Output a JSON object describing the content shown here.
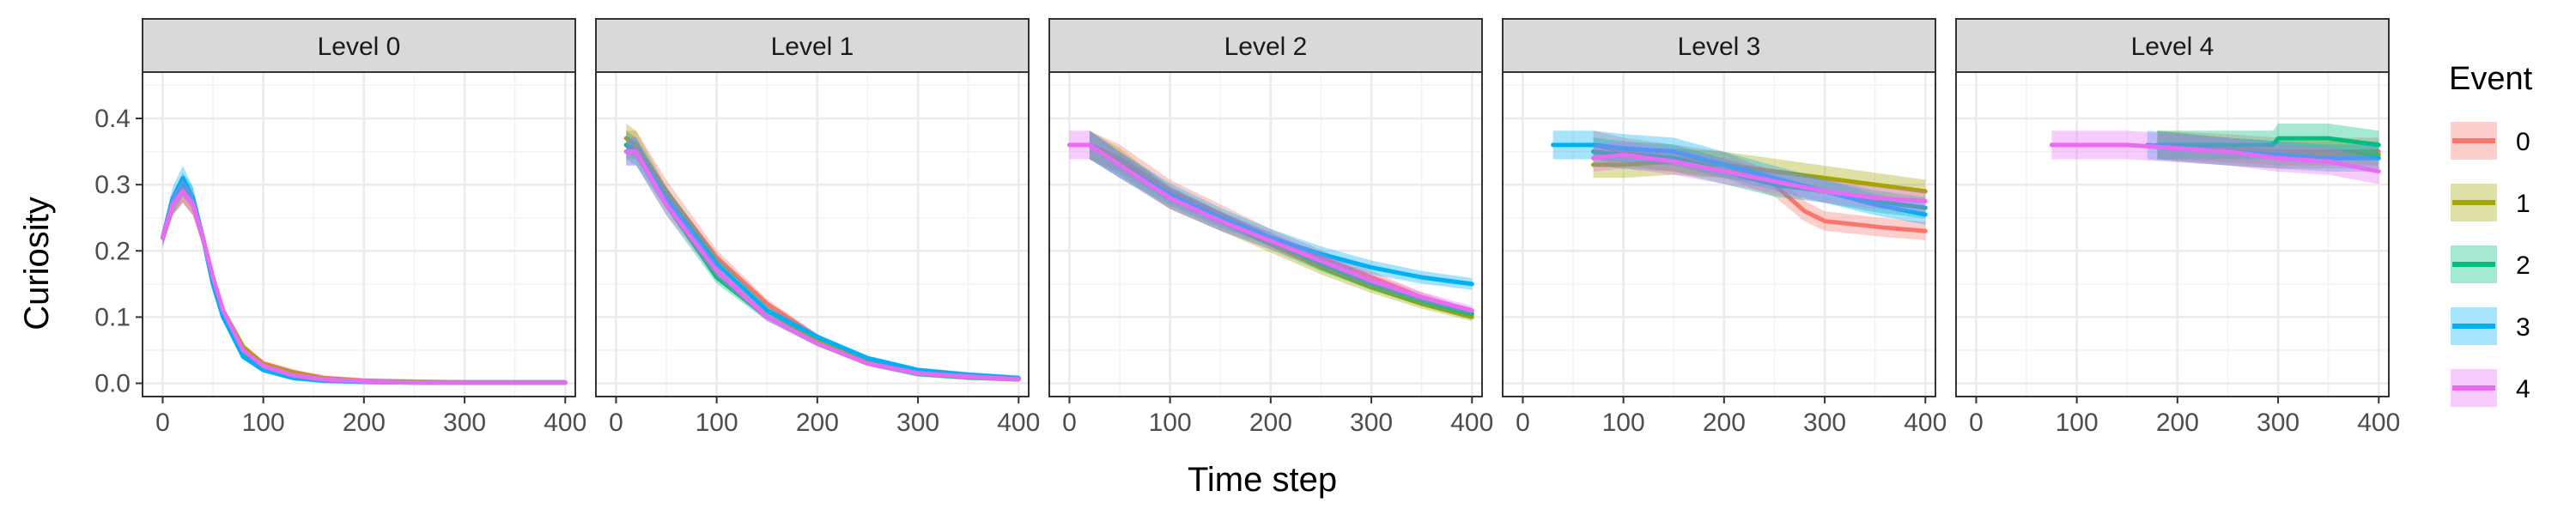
{
  "chart_data": {
    "type": "line",
    "title": "",
    "xlabel": "Time step",
    "ylabel": "Curiosity",
    "xlim": [
      -20,
      410
    ],
    "ylim": [
      -0.02,
      0.47
    ],
    "x_ticks": [
      0,
      100,
      200,
      300,
      400
    ],
    "y_ticks": [
      0.0,
      0.1,
      0.2,
      0.3,
      0.4
    ],
    "y_tick_labels": [
      "0.0",
      "0.1",
      "0.2",
      "0.3",
      "0.4"
    ],
    "grid": true,
    "legend": {
      "title": "Event",
      "placement": "right",
      "entries": [
        "0",
        "1",
        "2",
        "3",
        "4"
      ]
    },
    "colors": {
      "0": "#F8766D",
      "1": "#A3A500",
      "2": "#00BF7D",
      "3": "#00B0F6",
      "4": "#E76BF3"
    },
    "panels": [
      {
        "label": "Level 0",
        "series": [
          {
            "name": "0",
            "x": [
              0,
              10,
              20,
              30,
              40,
              50,
              60,
              80,
              100,
              130,
              160,
              200,
              250,
              300,
              400
            ],
            "y": [
              0.22,
              0.27,
              0.29,
              0.27,
              0.22,
              0.16,
              0.11,
              0.055,
              0.03,
              0.017,
              0.008,
              0.004,
              0.002,
              0.001,
              0.001
            ]
          },
          {
            "name": "1",
            "x": [
              0,
              10,
              20,
              30,
              40,
              50,
              60,
              80,
              100,
              130,
              160,
              200,
              250,
              300,
              400
            ],
            "y": [
              0.22,
              0.27,
              0.29,
              0.27,
              0.22,
              0.16,
              0.11,
              0.055,
              0.028,
              0.015,
              0.007,
              0.003,
              0.002,
              0.001,
              0.001
            ]
          },
          {
            "name": "2",
            "x": [
              0,
              10,
              20,
              30,
              40,
              50,
              60,
              80,
              100,
              130,
              160,
              200,
              250,
              300,
              400
            ],
            "y": [
              0.22,
              0.27,
              0.3,
              0.28,
              0.22,
              0.15,
              0.1,
              0.045,
              0.022,
              0.01,
              0.005,
              0.002,
              0.001,
              0.001,
              0.001
            ]
          },
          {
            "name": "3",
            "x": [
              0,
              10,
              20,
              30,
              40,
              50,
              60,
              80,
              100,
              130,
              160,
              200,
              250,
              300,
              400
            ],
            "y": [
              0.22,
              0.28,
              0.31,
              0.28,
              0.22,
              0.15,
              0.1,
              0.04,
              0.02,
              0.008,
              0.004,
              0.002,
              0.001,
              0.001,
              0.001
            ]
          },
          {
            "name": "4",
            "x": [
              0,
              10,
              20,
              30,
              40,
              50,
              60,
              80,
              100,
              130,
              160,
              200,
              250,
              300,
              400
            ],
            "y": [
              0.22,
              0.27,
              0.29,
              0.27,
              0.22,
              0.16,
              0.11,
              0.05,
              0.026,
              0.012,
              0.006,
              0.003,
              0.001,
              0.001,
              0.001
            ]
          }
        ]
      },
      {
        "label": "Level 1",
        "series": [
          {
            "name": "0",
            "x": [
              10,
              20,
              50,
              100,
              150,
              200,
              250,
              300,
              350,
              400
            ],
            "y": [
              0.36,
              0.36,
              0.29,
              0.19,
              0.12,
              0.07,
              0.035,
              0.017,
              0.01,
              0.007
            ]
          },
          {
            "name": "1",
            "x": [
              10,
              20,
              50,
              100,
              150,
              200,
              250,
              300,
              350,
              400
            ],
            "y": [
              0.37,
              0.36,
              0.28,
              0.18,
              0.11,
              0.065,
              0.032,
              0.015,
              0.009,
              0.006
            ]
          },
          {
            "name": "2",
            "x": [
              10,
              20,
              50,
              100,
              150,
              200,
              250,
              300,
              350,
              400
            ],
            "y": [
              0.36,
              0.35,
              0.27,
              0.16,
              0.1,
              0.06,
              0.03,
              0.014,
              0.009,
              0.007
            ]
          },
          {
            "name": "3",
            "x": [
              10,
              20,
              50,
              100,
              150,
              200,
              250,
              300,
              350,
              400
            ],
            "y": [
              0.35,
              0.35,
              0.28,
              0.18,
              0.11,
              0.07,
              0.038,
              0.02,
              0.013,
              0.008
            ]
          },
          {
            "name": "4",
            "x": [
              10,
              20,
              50,
              100,
              150,
              200,
              250,
              300,
              350,
              400
            ],
            "y": [
              0.35,
              0.35,
              0.27,
              0.17,
              0.1,
              0.06,
              0.03,
              0.015,
              0.01,
              0.006
            ]
          }
        ]
      },
      {
        "label": "Level 2",
        "series": [
          {
            "name": "0",
            "x": [
              20,
              50,
              100,
              150,
              200,
              250,
              300,
              350,
              400
            ],
            "y": [
              0.36,
              0.34,
              0.29,
              0.255,
              0.22,
              0.19,
              0.16,
              0.13,
              0.105
            ]
          },
          {
            "name": "1",
            "x": [
              20,
              50,
              100,
              150,
              200,
              250,
              300,
              350,
              400
            ],
            "y": [
              0.36,
              0.335,
              0.28,
              0.245,
              0.21,
              0.175,
              0.145,
              0.12,
              0.1
            ]
          },
          {
            "name": "2",
            "x": [
              20,
              50,
              100,
              150,
              200,
              250,
              300,
              350,
              400
            ],
            "y": [
              0.36,
              0.33,
              0.28,
              0.245,
              0.215,
              0.18,
              0.15,
              0.125,
              0.105
            ]
          },
          {
            "name": "3",
            "x": [
              20,
              50,
              100,
              150,
              200,
              250,
              300,
              350,
              400
            ],
            "y": [
              0.36,
              0.33,
              0.285,
              0.25,
              0.22,
              0.195,
              0.175,
              0.16,
              0.15
            ]
          },
          {
            "name": "4",
            "x": [
              0,
              20,
              50,
              100,
              150,
              200,
              250,
              300,
              350,
              400
            ],
            "y": [
              0.36,
              0.36,
              0.33,
              0.28,
              0.245,
              0.215,
              0.185,
              0.155,
              0.13,
              0.11
            ]
          }
        ]
      },
      {
        "label": "Level 3",
        "series": [
          {
            "name": "0",
            "x": [
              70,
              100,
              150,
              200,
              250,
              280,
              300,
              330,
              360,
              400
            ],
            "y": [
              0.36,
              0.35,
              0.34,
              0.33,
              0.3,
              0.26,
              0.245,
              0.24,
              0.235,
              0.23
            ]
          },
          {
            "name": "1",
            "x": [
              70,
              100,
              150,
              200,
              250,
              300,
              350,
              400
            ],
            "y": [
              0.33,
              0.33,
              0.335,
              0.33,
              0.32,
              0.31,
              0.3,
              0.29
            ]
          },
          {
            "name": "2",
            "x": [
              70,
              100,
              150,
              200,
              250,
              300,
              350,
              400
            ],
            "y": [
              0.35,
              0.345,
              0.34,
              0.32,
              0.3,
              0.29,
              0.275,
              0.265
            ]
          },
          {
            "name": "3",
            "x": [
              30,
              70,
              100,
              150,
              200,
              250,
              300,
              350,
              400
            ],
            "y": [
              0.36,
              0.36,
              0.355,
              0.35,
              0.33,
              0.31,
              0.29,
              0.27,
              0.255
            ]
          },
          {
            "name": "4",
            "x": [
              70,
              100,
              150,
              200,
              250,
              300,
              350,
              400
            ],
            "y": [
              0.34,
              0.345,
              0.335,
              0.32,
              0.305,
              0.29,
              0.28,
              0.275
            ]
          }
        ]
      },
      {
        "label": "Level 4",
        "series": [
          {
            "name": "0",
            "x": [
              180,
              250,
              300,
              350,
              400
            ],
            "y": [
              0.36,
              0.355,
              0.35,
              0.35,
              0.35
            ]
          },
          {
            "name": "1",
            "x": [
              180,
              250,
              300,
              350,
              400
            ],
            "y": [
              0.36,
              0.35,
              0.345,
              0.345,
              0.345
            ]
          },
          {
            "name": "2",
            "x": [
              180,
              250,
              295,
              300,
              350,
              400
            ],
            "y": [
              0.36,
              0.36,
              0.36,
              0.37,
              0.37,
              0.36
            ]
          },
          {
            "name": "3",
            "x": [
              170,
              250,
              300,
              350,
              400
            ],
            "y": [
              0.36,
              0.35,
              0.345,
              0.34,
              0.34
            ]
          },
          {
            "name": "4",
            "x": [
              75,
              150,
              200,
              250,
              300,
              350,
              400
            ],
            "y": [
              0.36,
              0.36,
              0.355,
              0.35,
              0.34,
              0.335,
              0.32
            ]
          }
        ]
      }
    ]
  }
}
